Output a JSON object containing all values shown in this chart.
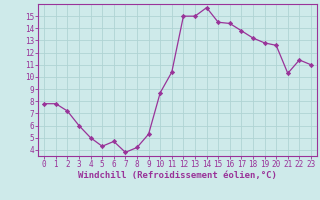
{
  "x": [
    0,
    1,
    2,
    3,
    4,
    5,
    6,
    7,
    8,
    9,
    10,
    11,
    12,
    13,
    14,
    15,
    16,
    17,
    18,
    19,
    20,
    21,
    22,
    23
  ],
  "y": [
    7.8,
    7.8,
    7.2,
    6.0,
    5.0,
    4.3,
    4.7,
    3.8,
    4.2,
    5.3,
    8.7,
    10.4,
    15.0,
    15.0,
    15.7,
    14.5,
    14.4,
    13.8,
    13.2,
    12.8,
    12.6,
    10.3,
    11.4,
    11.0
  ],
  "line_color": "#993399",
  "marker": "D",
  "marker_size": 2.2,
  "xlabel": "Windchill (Refroidissement éolien,°C)",
  "ylim": [
    3.5,
    16.0
  ],
  "xlim": [
    -0.5,
    23.5
  ],
  "yticks": [
    4,
    5,
    6,
    7,
    8,
    9,
    10,
    11,
    12,
    13,
    14,
    15
  ],
  "xticks": [
    0,
    1,
    2,
    3,
    4,
    5,
    6,
    7,
    8,
    9,
    10,
    11,
    12,
    13,
    14,
    15,
    16,
    17,
    18,
    19,
    20,
    21,
    22,
    23
  ],
  "background_color": "#ceeaea",
  "grid_color": "#b0d4d4",
  "axis_color": "#993399",
  "tick_color": "#993399",
  "label_color": "#993399",
  "tick_fontsize": 5.5,
  "xlabel_fontsize": 6.5
}
